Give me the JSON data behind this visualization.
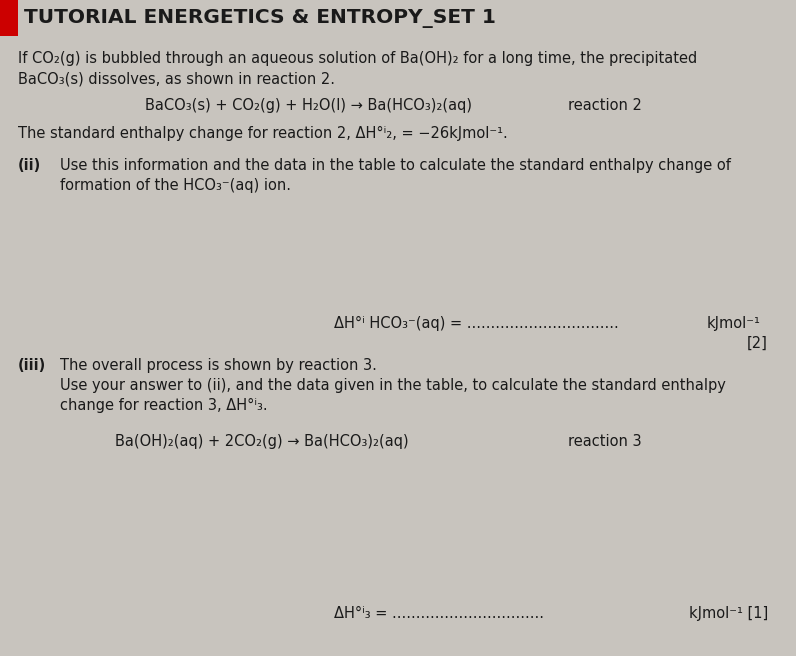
{
  "bg_color": "#c8c4be",
  "header_bg": "#c8c4be",
  "header_accent": "#cc0000",
  "header_text": "TUTORIAL ENERGETICS & ENTROPY_SET 1",
  "header_text_color": "#1a1a1a",
  "body_bg": "#c8c4be",
  "para1_line1": "If CO₂(g) is bubbled through an aqueous solution of Ba(OH)₂ for a long time, the precipitated",
  "para1_line2": "BaCO₃(s) dissolves, as shown in reaction 2.",
  "reaction2_eq": "BaCO₃(s) + CO₂(g) + H₂O(l) → Ba(HCO₃)₂(aq)",
  "reaction2_label": "reaction 2",
  "para2": "The standard enthalpy change for reaction 2, ΔH°ⁱ₂, = −26kJmol⁻¹.",
  "part_ii_label": "(ii)",
  "part_ii_line1": "Use this information and the data in the table to calculate the standard enthalpy change of",
  "part_ii_line2": "formation of the HCO₃⁻(aq) ion.",
  "answer_ii_label": "ΔH°ⁱ HCO₃⁻(aq) =",
  "answer_ii_dots": "................................",
  "answer_ii_unit": "kJmol⁻¹",
  "answer_ii_marks": "[2]",
  "part_iii_label": "(iii)",
  "part_iii_line1": "The overall process is shown by reaction 3.",
  "part_iii_line2": "Use your answer to (ii), and the data given in the table, to calculate the standard enthalpy",
  "part_iii_line3": "change for reaction 3, ΔH°ⁱ₃.",
  "reaction3_eq": "Ba(OH)₂(aq) + 2CO₂(g) → Ba(HCO₃)₂(aq)",
  "reaction3_label": "reaction 3",
  "answer_iii_label": "ΔH°ⁱ₃ =",
  "answer_iii_dots": "................................",
  "answer_iii_unit": "kJmol⁻¹ [1]",
  "text_color": "#1a1a1a",
  "font_size_body": 10.5,
  "font_size_reaction": 10.5,
  "font_size_header": 14.5
}
